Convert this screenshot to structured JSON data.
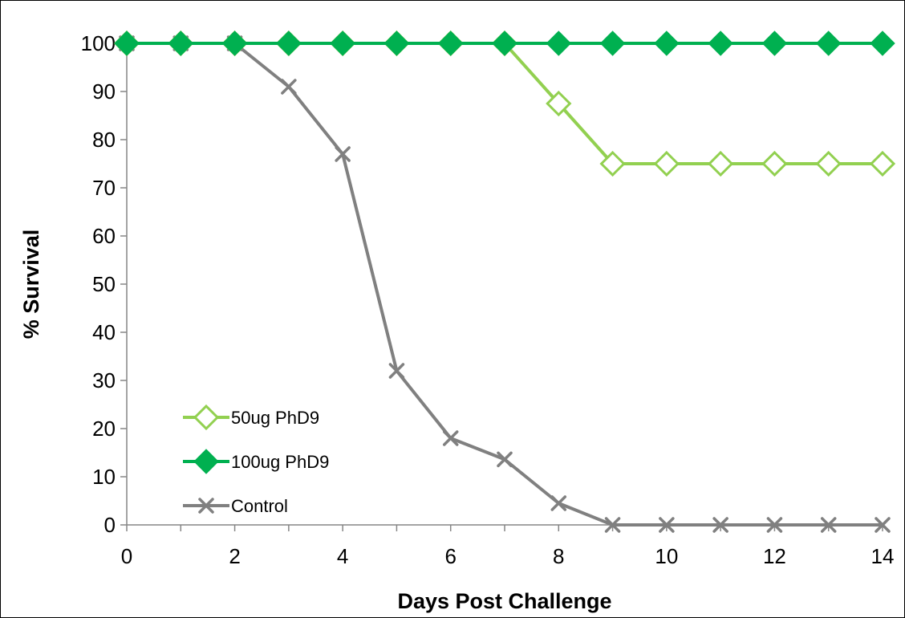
{
  "chart_data": {
    "type": "line",
    "xlabel": "Days Post Challenge",
    "ylabel": "% Survival",
    "xlim": [
      0,
      14
    ],
    "ylim": [
      0,
      100
    ],
    "x_ticks": [
      0,
      2,
      4,
      6,
      8,
      10,
      12,
      14
    ],
    "y_ticks": [
      0,
      10,
      20,
      30,
      40,
      50,
      60,
      70,
      80,
      90,
      100
    ],
    "x": [
      0,
      1,
      2,
      3,
      4,
      5,
      6,
      7,
      8,
      9,
      10,
      11,
      12,
      13,
      14
    ],
    "grid": false,
    "legend_position": "bottom-left",
    "series": [
      {
        "name": "50ug PhD9",
        "color": "#92d050",
        "marker": "diamond-open",
        "values": [
          100,
          100,
          100,
          100,
          100,
          100,
          100,
          100,
          87.5,
          75,
          75,
          75,
          75,
          75,
          75
        ]
      },
      {
        "name": "100ug PhD9",
        "color": "#00b050",
        "marker": "diamond-filled",
        "values": [
          100,
          100,
          100,
          100,
          100,
          100,
          100,
          100,
          100,
          100,
          100,
          100,
          100,
          100,
          100
        ]
      },
      {
        "name": "Control",
        "color": "#808080",
        "marker": "x",
        "values": [
          100,
          100,
          100,
          91,
          77,
          32,
          18,
          13.6,
          4.5,
          0,
          0,
          0,
          0,
          0,
          0
        ]
      }
    ]
  }
}
